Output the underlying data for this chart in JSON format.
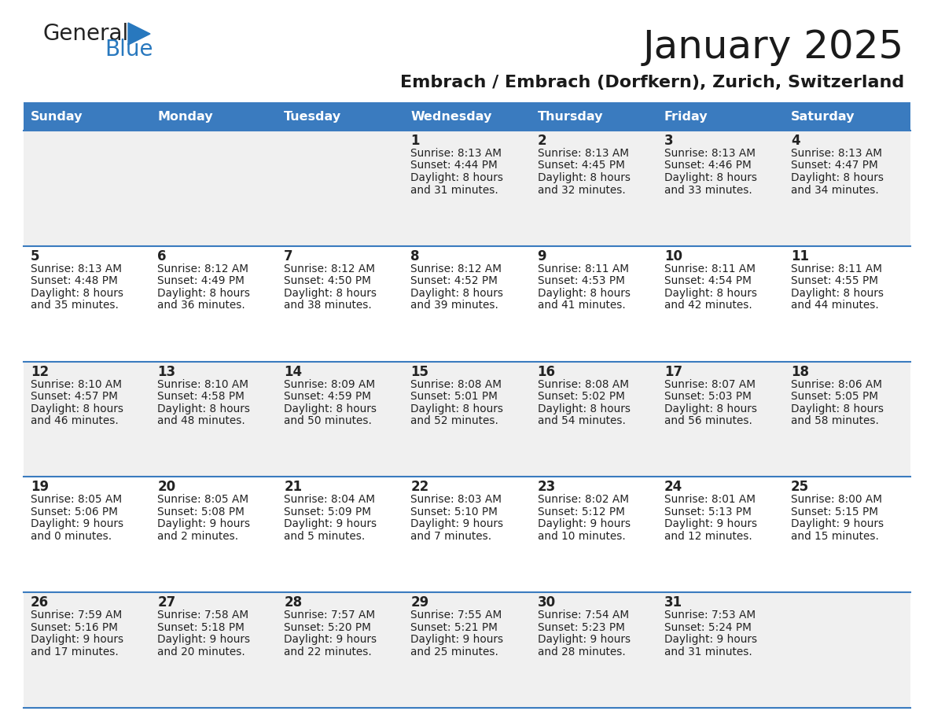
{
  "title": "January 2025",
  "subtitle": "Embrach / Embrach (Dorfkern), Zurich, Switzerland",
  "days_of_week": [
    "Sunday",
    "Monday",
    "Tuesday",
    "Wednesday",
    "Thursday",
    "Friday",
    "Saturday"
  ],
  "header_bg": "#3a7bbf",
  "header_text": "#ffffff",
  "row_bg_light": "#f0f0f0",
  "row_bg_white": "#ffffff",
  "border_color": "#3a7bbf",
  "text_color": "#222222",
  "title_color": "#1a1a1a",
  "logo_general_color": "#222222",
  "logo_blue_color": "#2878be",
  "calendar_data": [
    [
      null,
      null,
      null,
      {
        "day": 1,
        "sunrise": "8:13 AM",
        "sunset": "4:44 PM",
        "daylight_h": "8 hours",
        "daylight_m": "and 31 minutes."
      },
      {
        "day": 2,
        "sunrise": "8:13 AM",
        "sunset": "4:45 PM",
        "daylight_h": "8 hours",
        "daylight_m": "and 32 minutes."
      },
      {
        "day": 3,
        "sunrise": "8:13 AM",
        "sunset": "4:46 PM",
        "daylight_h": "8 hours",
        "daylight_m": "and 33 minutes."
      },
      {
        "day": 4,
        "sunrise": "8:13 AM",
        "sunset": "4:47 PM",
        "daylight_h": "8 hours",
        "daylight_m": "and 34 minutes."
      }
    ],
    [
      {
        "day": 5,
        "sunrise": "8:13 AM",
        "sunset": "4:48 PM",
        "daylight_h": "8 hours",
        "daylight_m": "and 35 minutes."
      },
      {
        "day": 6,
        "sunrise": "8:12 AM",
        "sunset": "4:49 PM",
        "daylight_h": "8 hours",
        "daylight_m": "and 36 minutes."
      },
      {
        "day": 7,
        "sunrise": "8:12 AM",
        "sunset": "4:50 PM",
        "daylight_h": "8 hours",
        "daylight_m": "and 38 minutes."
      },
      {
        "day": 8,
        "sunrise": "8:12 AM",
        "sunset": "4:52 PM",
        "daylight_h": "8 hours",
        "daylight_m": "and 39 minutes."
      },
      {
        "day": 9,
        "sunrise": "8:11 AM",
        "sunset": "4:53 PM",
        "daylight_h": "8 hours",
        "daylight_m": "and 41 minutes."
      },
      {
        "day": 10,
        "sunrise": "8:11 AM",
        "sunset": "4:54 PM",
        "daylight_h": "8 hours",
        "daylight_m": "and 42 minutes."
      },
      {
        "day": 11,
        "sunrise": "8:11 AM",
        "sunset": "4:55 PM",
        "daylight_h": "8 hours",
        "daylight_m": "and 44 minutes."
      }
    ],
    [
      {
        "day": 12,
        "sunrise": "8:10 AM",
        "sunset": "4:57 PM",
        "daylight_h": "8 hours",
        "daylight_m": "and 46 minutes."
      },
      {
        "day": 13,
        "sunrise": "8:10 AM",
        "sunset": "4:58 PM",
        "daylight_h": "8 hours",
        "daylight_m": "and 48 minutes."
      },
      {
        "day": 14,
        "sunrise": "8:09 AM",
        "sunset": "4:59 PM",
        "daylight_h": "8 hours",
        "daylight_m": "and 50 minutes."
      },
      {
        "day": 15,
        "sunrise": "8:08 AM",
        "sunset": "5:01 PM",
        "daylight_h": "8 hours",
        "daylight_m": "and 52 minutes."
      },
      {
        "day": 16,
        "sunrise": "8:08 AM",
        "sunset": "5:02 PM",
        "daylight_h": "8 hours",
        "daylight_m": "and 54 minutes."
      },
      {
        "day": 17,
        "sunrise": "8:07 AM",
        "sunset": "5:03 PM",
        "daylight_h": "8 hours",
        "daylight_m": "and 56 minutes."
      },
      {
        "day": 18,
        "sunrise": "8:06 AM",
        "sunset": "5:05 PM",
        "daylight_h": "8 hours",
        "daylight_m": "and 58 minutes."
      }
    ],
    [
      {
        "day": 19,
        "sunrise": "8:05 AM",
        "sunset": "5:06 PM",
        "daylight_h": "9 hours",
        "daylight_m": "and 0 minutes."
      },
      {
        "day": 20,
        "sunrise": "8:05 AM",
        "sunset": "5:08 PM",
        "daylight_h": "9 hours",
        "daylight_m": "and 2 minutes."
      },
      {
        "day": 21,
        "sunrise": "8:04 AM",
        "sunset": "5:09 PM",
        "daylight_h": "9 hours",
        "daylight_m": "and 5 minutes."
      },
      {
        "day": 22,
        "sunrise": "8:03 AM",
        "sunset": "5:10 PM",
        "daylight_h": "9 hours",
        "daylight_m": "and 7 minutes."
      },
      {
        "day": 23,
        "sunrise": "8:02 AM",
        "sunset": "5:12 PM",
        "daylight_h": "9 hours",
        "daylight_m": "and 10 minutes."
      },
      {
        "day": 24,
        "sunrise": "8:01 AM",
        "sunset": "5:13 PM",
        "daylight_h": "9 hours",
        "daylight_m": "and 12 minutes."
      },
      {
        "day": 25,
        "sunrise": "8:00 AM",
        "sunset": "5:15 PM",
        "daylight_h": "9 hours",
        "daylight_m": "and 15 minutes."
      }
    ],
    [
      {
        "day": 26,
        "sunrise": "7:59 AM",
        "sunset": "5:16 PM",
        "daylight_h": "9 hours",
        "daylight_m": "and 17 minutes."
      },
      {
        "day": 27,
        "sunrise": "7:58 AM",
        "sunset": "5:18 PM",
        "daylight_h": "9 hours",
        "daylight_m": "and 20 minutes."
      },
      {
        "day": 28,
        "sunrise": "7:57 AM",
        "sunset": "5:20 PM",
        "daylight_h": "9 hours",
        "daylight_m": "and 22 minutes."
      },
      {
        "day": 29,
        "sunrise": "7:55 AM",
        "sunset": "5:21 PM",
        "daylight_h": "9 hours",
        "daylight_m": "and 25 minutes."
      },
      {
        "day": 30,
        "sunrise": "7:54 AM",
        "sunset": "5:23 PM",
        "daylight_h": "9 hours",
        "daylight_m": "and 28 minutes."
      },
      {
        "day": 31,
        "sunrise": "7:53 AM",
        "sunset": "5:24 PM",
        "daylight_h": "9 hours",
        "daylight_m": "and 31 minutes."
      },
      null
    ]
  ]
}
